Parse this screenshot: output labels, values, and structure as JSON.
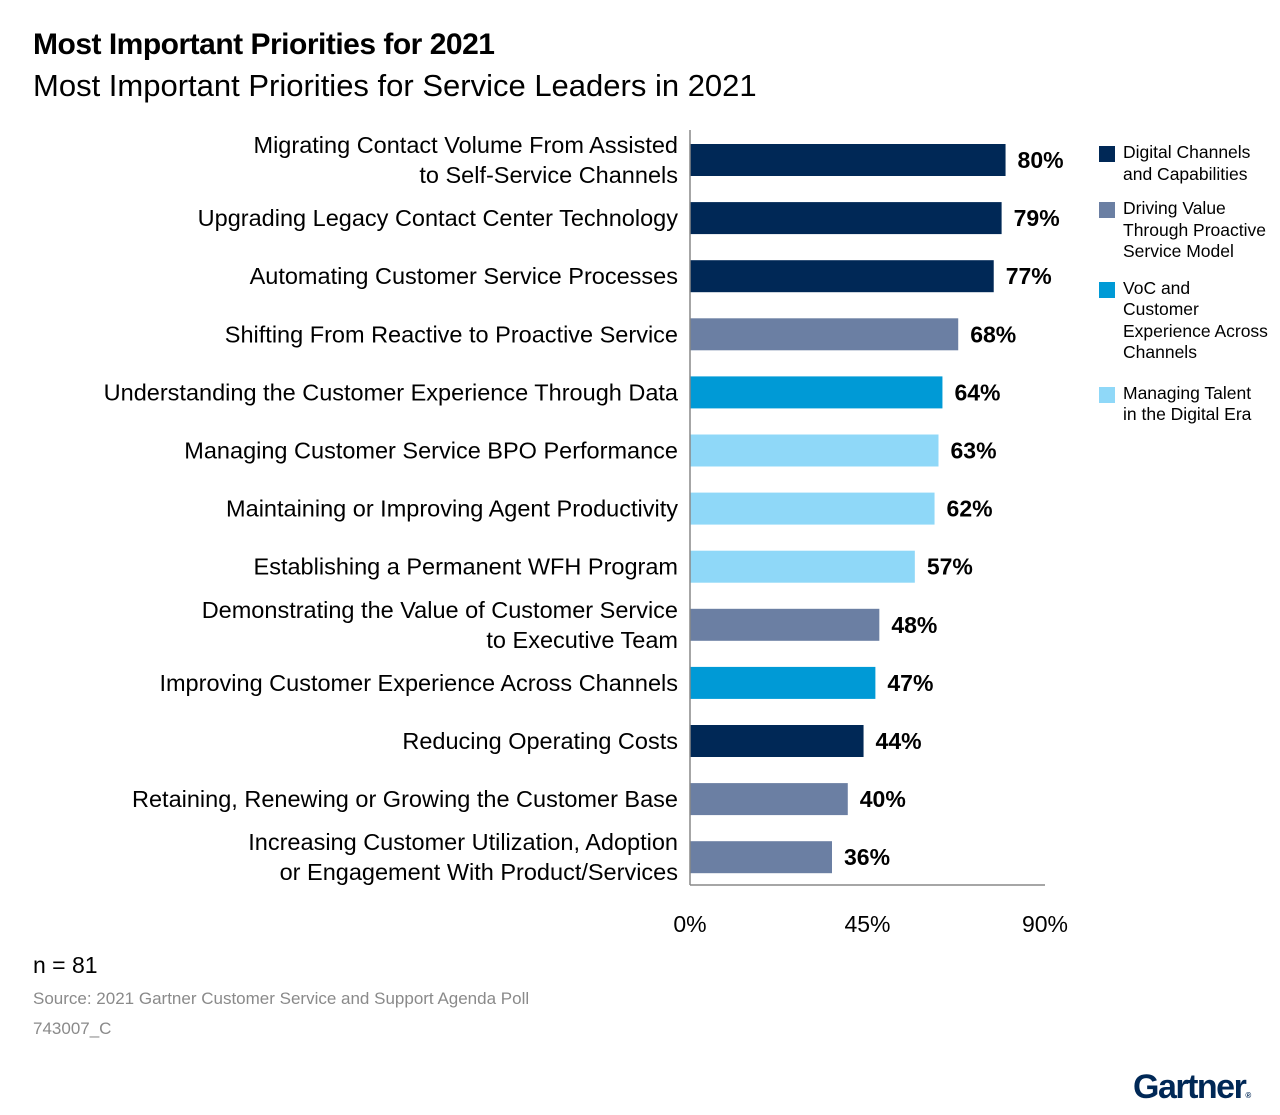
{
  "title": "Most Important Priorities for 2021",
  "subtitle": "Most Important Priorities for Service Leaders in 2021",
  "footnote_n": "n = 81",
  "source": "Source: 2021 Gartner Customer Service and Support Agenda Poll",
  "code": "743007_C",
  "logo": "Gartner",
  "chart_data": {
    "type": "bar",
    "orientation": "horizontal",
    "xlim": [
      0,
      90
    ],
    "x_ticks": [
      "0%",
      "45%",
      "90%"
    ],
    "grid": false,
    "legend_placement": "right",
    "legend": [
      {
        "name": "Digital Channels and Capabilities",
        "color": "#002856"
      },
      {
        "name": "Driving Value Through Proactive Service Model",
        "color": "#6b7fa3"
      },
      {
        "name": "VoC and Customer Experience Across Channels",
        "color": "#009ad6"
      },
      {
        "name": "Managing Talent in the Digital Era",
        "color": "#8fd8f8"
      }
    ],
    "categories": [
      [
        "Migrating Contact Volume From Assisted",
        "to Self-Service Channels"
      ],
      [
        "Upgrading Legacy Contact Center Technology"
      ],
      [
        "Automating Customer Service Processes"
      ],
      [
        "Shifting From Reactive to Proactive Service"
      ],
      [
        "Understanding the Customer Experience Through Data"
      ],
      [
        "Managing Customer Service BPO Performance"
      ],
      [
        "Maintaining or Improving Agent Productivity"
      ],
      [
        "Establishing a Permanent WFH Program"
      ],
      [
        "Demonstrating the Value of Customer Service",
        "to Executive Team"
      ],
      [
        "Improving Customer Experience Across Channels"
      ],
      [
        "Reducing Operating Costs"
      ],
      [
        "Retaining, Renewing or Growing the Customer Base"
      ],
      [
        "Increasing Customer Utilization, Adoption",
        "or Engagement With Product/Services"
      ]
    ],
    "values": [
      80,
      79,
      77,
      68,
      64,
      63,
      62,
      57,
      48,
      47,
      44,
      40,
      36
    ],
    "data_labels": [
      "80%",
      "79%",
      "77%",
      "68%",
      "64%",
      "63%",
      "62%",
      "57%",
      "48%",
      "47%",
      "44%",
      "40%",
      "36%"
    ],
    "group_index": [
      0,
      0,
      0,
      1,
      2,
      3,
      3,
      3,
      1,
      2,
      0,
      1,
      1
    ]
  }
}
